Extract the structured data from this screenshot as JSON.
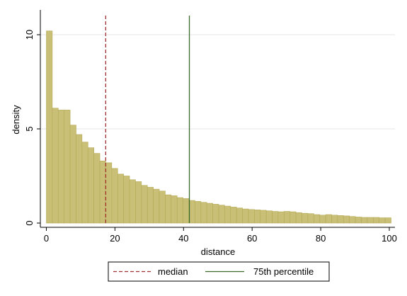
{
  "chart_data": {
    "type": "bar",
    "xlabel": "distance",
    "ylabel": "density",
    "xlim": [
      0,
      100
    ],
    "ylim": [
      0,
      11
    ],
    "xticks": [
      0,
      20,
      40,
      60,
      80,
      100
    ],
    "yticks": [
      0,
      5,
      10
    ],
    "grid": "horizontal",
    "bin_width": 1.733,
    "bin_start": 0,
    "bar_color": "#c9bf76",
    "bar_edge_color": "#b5a955",
    "values": [
      10.2,
      6.1,
      6.0,
      6.0,
      5.2,
      4.7,
      4.3,
      4.0,
      3.7,
      3.3,
      3.2,
      2.9,
      2.6,
      2.5,
      2.3,
      2.2,
      2.0,
      1.9,
      1.8,
      1.7,
      1.5,
      1.45,
      1.35,
      1.3,
      1.2,
      1.15,
      1.1,
      1.05,
      1.0,
      0.95,
      0.9,
      0.85,
      0.8,
      0.75,
      0.72,
      0.7,
      0.68,
      0.65,
      0.62,
      0.6,
      0.62,
      0.6,
      0.55,
      0.52,
      0.5,
      0.45,
      0.42,
      0.45,
      0.42,
      0.4,
      0.38,
      0.35,
      0.32,
      0.3,
      0.3,
      0.3,
      0.28,
      0.28
    ],
    "reference_lines": [
      {
        "name": "median",
        "x": 17.3,
        "color": "#a03030",
        "style": "dashed"
      },
      {
        "name": "75th percentile",
        "x": 41.7,
        "color": "#3a6a2a",
        "style": "solid"
      }
    ],
    "legend_position": "bottom"
  }
}
